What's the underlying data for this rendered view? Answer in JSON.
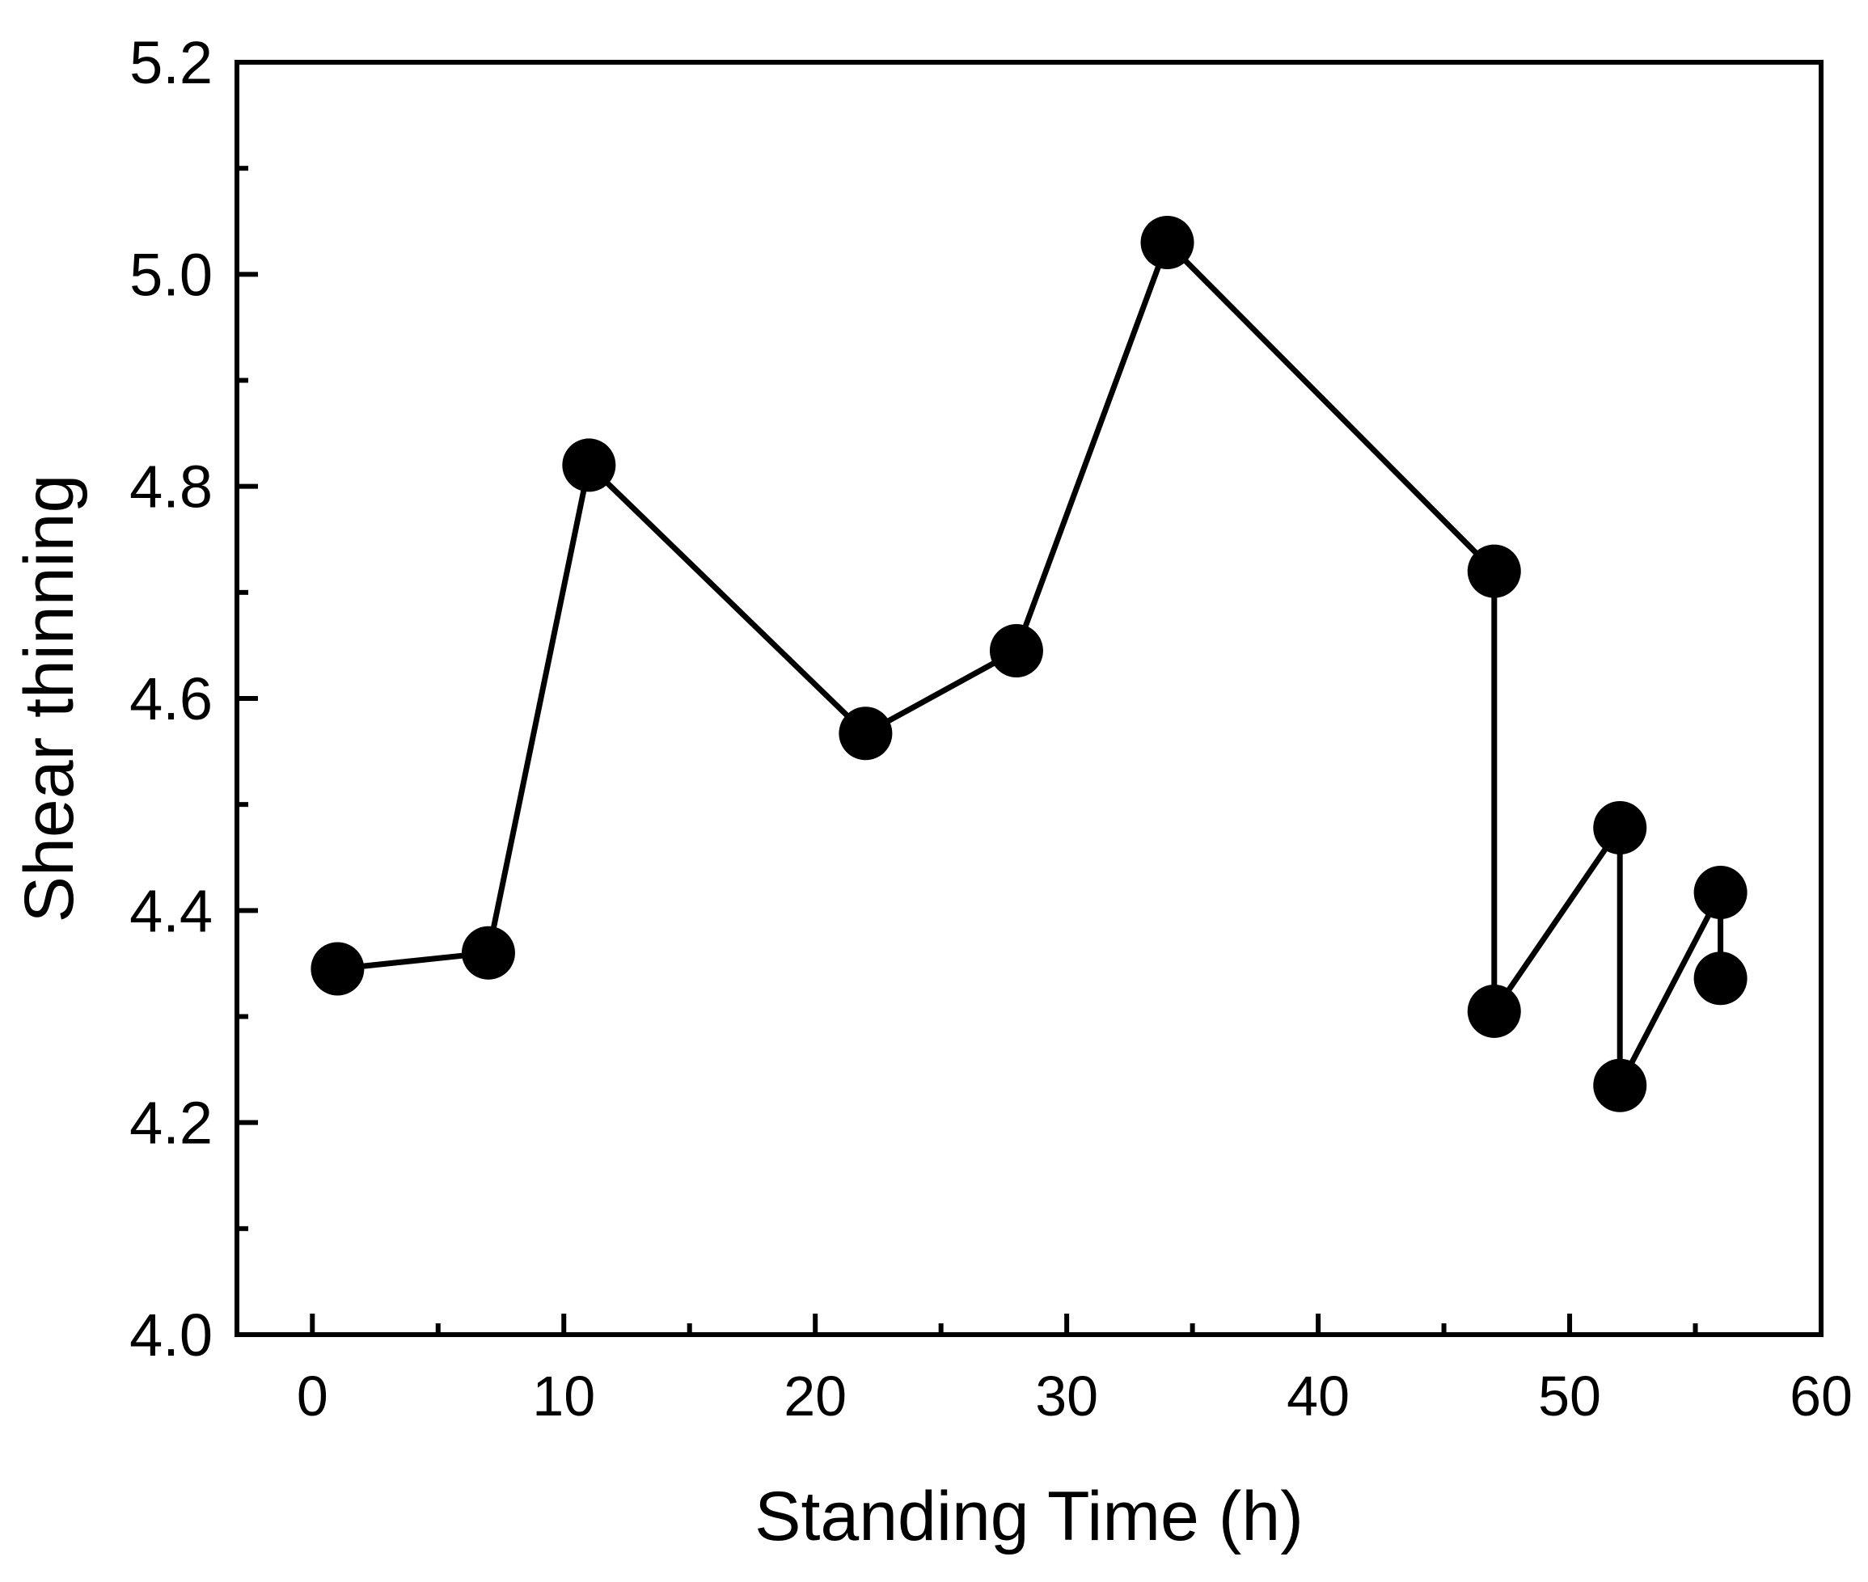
{
  "chart_data": {
    "type": "line",
    "title": "",
    "xlabel": "Standing Time (h)",
    "ylabel": "Shear thinning",
    "xlim": [
      -3,
      60
    ],
    "ylim": [
      4.0,
      5.2
    ],
    "x_ticks": [
      0,
      10,
      20,
      30,
      40,
      50,
      60
    ],
    "x_tick_labels": [
      "0",
      "10",
      "20",
      "30",
      "40",
      "50",
      "60"
    ],
    "x_minor_ticks": [
      5,
      15,
      25,
      35,
      45,
      55
    ],
    "y_ticks": [
      4.0,
      4.2,
      4.4,
      4.6,
      4.8,
      5.0,
      5.2
    ],
    "y_tick_labels": [
      "4.0",
      "4.2",
      "4.4",
      "4.6",
      "4.8",
      "5.0",
      "5.2"
    ],
    "y_minor_ticks": [
      4.1,
      4.3,
      4.5,
      4.7,
      4.9,
      5.1
    ],
    "grid": false,
    "legend": "none",
    "series": [
      {
        "name": "Shear thinning",
        "color": "#000000",
        "marker": "filled-circle",
        "x": [
          1,
          7,
          11,
          22,
          28,
          34,
          47,
          47,
          52,
          52,
          56,
          56
        ],
        "y": [
          4.345,
          4.36,
          4.82,
          4.567,
          4.645,
          5.03,
          4.72,
          4.305,
          4.478,
          4.235,
          4.417,
          4.336
        ]
      }
    ]
  }
}
